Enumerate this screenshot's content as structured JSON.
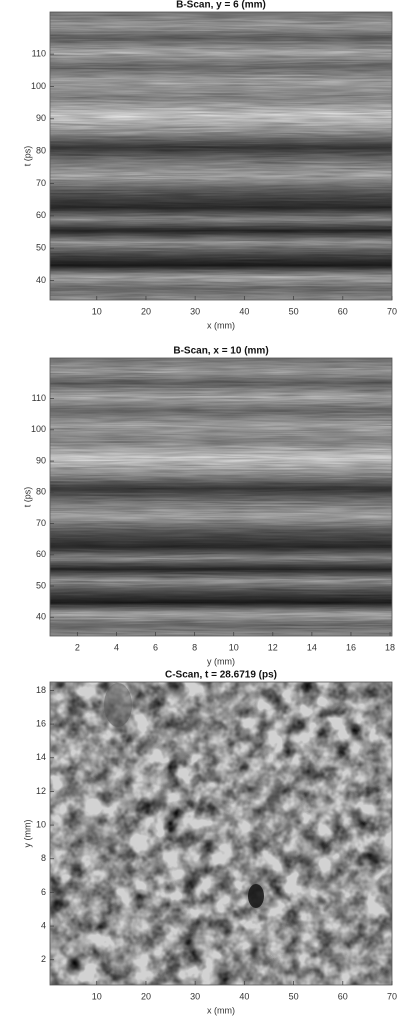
{
  "chart_data": [
    {
      "type": "image",
      "title": "B-Scan, y = 6 (mm)",
      "x_label": "x (mm)",
      "y_label": "t (ps)",
      "xlim": [
        0.5,
        70
      ],
      "xticks": [
        10,
        20,
        30,
        40,
        50,
        60,
        70
      ],
      "ylim": [
        34,
        123
      ],
      "yticks": [
        40,
        50,
        60,
        70,
        80,
        90,
        100,
        110
      ]
    },
    {
      "type": "image",
      "title": "B-Scan, x = 10 (mm)",
      "x_label": "y (mm)",
      "y_label": "t (ps)",
      "xlim": [
        0.6,
        18.1
      ],
      "xticks": [
        2,
        4,
        6,
        8,
        10,
        12,
        14,
        16,
        18
      ],
      "ylim": [
        34,
        123
      ],
      "yticks": [
        40,
        50,
        60,
        70,
        80,
        90,
        100,
        110
      ]
    },
    {
      "type": "image",
      "title": "C-Scan, t = 28.6719 (ps)",
      "x_label": "x (mm)",
      "y_label": "y (mm)",
      "xlim": [
        0.5,
        70
      ],
      "xticks": [
        10,
        20,
        30,
        40,
        50,
        60,
        70
      ],
      "ylim": [
        0.5,
        18.5
      ],
      "yticks": [
        2,
        4,
        6,
        8,
        10,
        12,
        14,
        16,
        18
      ]
    }
  ]
}
